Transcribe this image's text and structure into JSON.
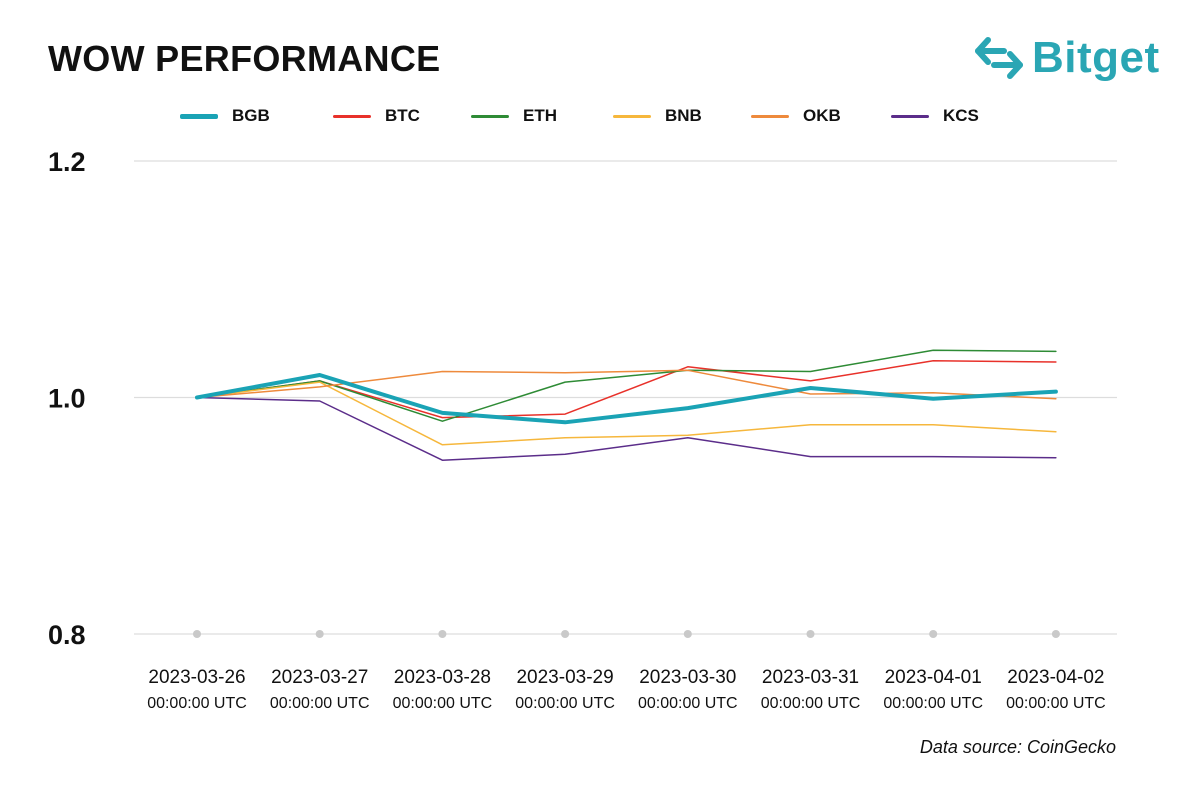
{
  "header": {
    "title": "WOW PERFORMANCE",
    "brand": "Bitget",
    "brand_icon": "bitget-arrows-icon",
    "brand_color": "#2aa6b4"
  },
  "footer": {
    "source": "Data source: CoinGecko"
  },
  "chart_data": {
    "type": "line",
    "title": "WOW PERFORMANCE",
    "xlabel": "",
    "ylabel": "",
    "ylim": [
      0.8,
      1.2
    ],
    "yticks": [
      "1.2",
      "1.0",
      "0.8"
    ],
    "ytick_values": [
      1.2,
      1.0,
      0.8
    ],
    "grid": true,
    "legend_position": "top",
    "x": [
      {
        "date": "2023-03-26",
        "time": "00:00:00 UTC"
      },
      {
        "date": "2023-03-27",
        "time": "00:00:00 UTC"
      },
      {
        "date": "2023-03-28",
        "time": "00:00:00 UTC"
      },
      {
        "date": "2023-03-29",
        "time": "00:00:00 UTC"
      },
      {
        "date": "2023-03-30",
        "time": "00:00:00 UTC"
      },
      {
        "date": "2023-03-31",
        "time": "00:00:00 UTC"
      },
      {
        "date": "2023-04-01",
        "time": "00:00:00 UTC"
      },
      {
        "date": "2023-04-02",
        "time": "00:00:00 UTC"
      }
    ],
    "series": [
      {
        "name": "BGB",
        "color": "#1aa3b5",
        "emphasis": true,
        "values": [
          1.0,
          1.019,
          0.987,
          0.979,
          0.991,
          1.008,
          0.999,
          1.005
        ]
      },
      {
        "name": "BTC",
        "color": "#e8312a",
        "values": [
          1.0,
          1.014,
          0.983,
          0.986,
          1.026,
          1.014,
          1.031,
          1.03
        ]
      },
      {
        "name": "ETH",
        "color": "#2e8b35",
        "values": [
          1.0,
          1.014,
          0.98,
          1.013,
          1.023,
          1.022,
          1.04,
          1.039
        ]
      },
      {
        "name": "BNB",
        "color": "#f6b73c",
        "values": [
          1.0,
          1.013,
          0.96,
          0.966,
          0.968,
          0.977,
          0.977,
          0.971
        ]
      },
      {
        "name": "OKB",
        "color": "#ee8a3c",
        "values": [
          1.0,
          1.009,
          1.022,
          1.021,
          1.023,
          1.003,
          1.004,
          0.999
        ]
      },
      {
        "name": "KCS",
        "color": "#5b2d8a",
        "values": [
          1.0,
          0.997,
          0.947,
          0.952,
          0.966,
          0.95,
          0.95,
          0.949
        ]
      }
    ]
  }
}
